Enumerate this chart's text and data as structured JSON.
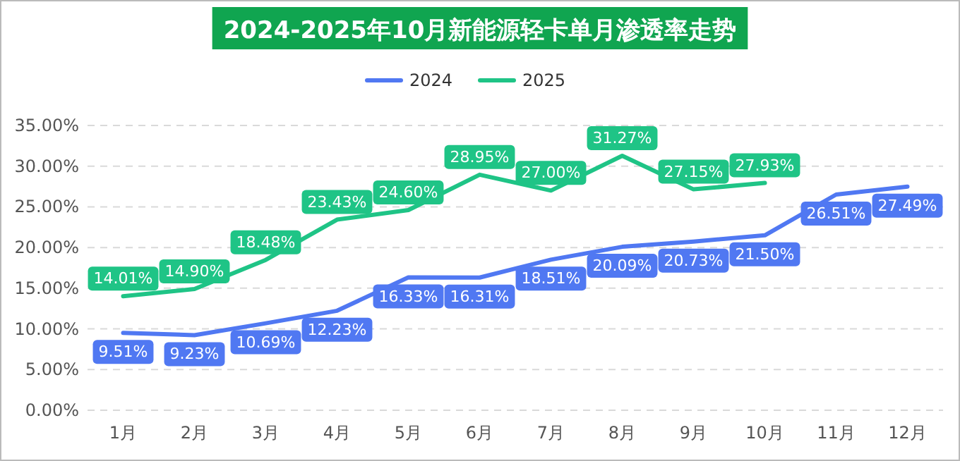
{
  "chart_data": {
    "type": "line",
    "title": "2024-2025年10月新能源轻卡单月渗透率走势",
    "categories": [
      "1月",
      "2月",
      "3月",
      "4月",
      "5月",
      "6月",
      "7月",
      "8月",
      "9月",
      "10月",
      "11月",
      "12月"
    ],
    "series": [
      {
        "name": "2024",
        "color": "#5078f2",
        "values": [
          9.51,
          9.23,
          10.69,
          12.23,
          16.33,
          16.31,
          18.51,
          20.09,
          20.73,
          21.5,
          26.51,
          27.49
        ],
        "value_labels": [
          "9.51%",
          "9.23%",
          "10.69%",
          "12.23%",
          "16.33%",
          "16.31%",
          "18.51%",
          "20.09%",
          "20.73%",
          "21.50%",
          "26.51%",
          "27.49%"
        ]
      },
      {
        "name": "2025",
        "color": "#1fc486",
        "values": [
          14.01,
          14.9,
          18.48,
          23.43,
          24.6,
          28.95,
          27.0,
          31.27,
          27.15,
          27.93,
          null,
          null
        ],
        "value_labels": [
          "14.01%",
          "14.90%",
          "18.48%",
          "23.43%",
          "24.60%",
          "28.95%",
          "27.00%",
          "31.27%",
          "27.15%",
          "27.93%",
          null,
          null
        ]
      }
    ],
    "ylim": [
      0,
      35
    ],
    "yticks": [
      {
        "value": 0,
        "label": "0.00%"
      },
      {
        "value": 5,
        "label": "5.00%"
      },
      {
        "value": 10,
        "label": "10.00%"
      },
      {
        "value": 15,
        "label": "15.00%"
      },
      {
        "value": 20,
        "label": "20.00%"
      },
      {
        "value": 25,
        "label": "25.00%"
      },
      {
        "value": 30,
        "label": "30.00%"
      },
      {
        "value": 35,
        "label": "35.00%"
      }
    ],
    "grid": "y",
    "legend": "top",
    "line_style": "solid"
  }
}
